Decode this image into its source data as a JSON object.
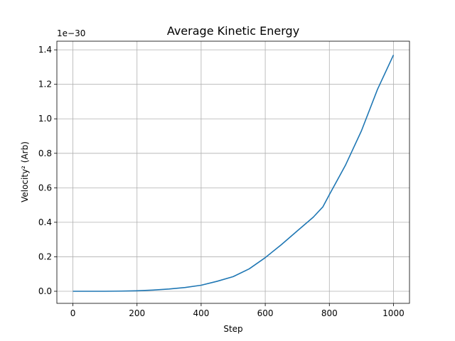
{
  "chart_data": {
    "type": "line",
    "title": "Average Kinetic Energy",
    "xlabel": "Step",
    "ylabel": "Velocity² (Arb)",
    "y_multiplier_label": "1e−30",
    "xlim": [
      -50,
      1050
    ],
    "ylim": [
      -0.07,
      1.45
    ],
    "xticks": [
      0,
      200,
      400,
      600,
      800,
      1000
    ],
    "xtick_labels": [
      "0",
      "200",
      "400",
      "600",
      "800",
      "1000"
    ],
    "yticks": [
      0.0,
      0.2,
      0.4,
      0.6,
      0.8,
      1.0,
      1.2,
      1.4
    ],
    "ytick_labels": [
      "0.0",
      "0.2",
      "0.4",
      "0.6",
      "0.8",
      "1.0",
      "1.2",
      "1.4"
    ],
    "grid": true,
    "series": [
      {
        "color": "#1f77b4",
        "x": [
          0,
          50,
          100,
          150,
          200,
          250,
          300,
          350,
          400,
          450,
          500,
          550,
          600,
          650,
          700,
          750,
          780,
          800,
          850,
          900,
          950,
          1000
        ],
        "y": [
          0.0,
          0.0,
          0.0,
          0.001,
          0.003,
          0.007,
          0.013,
          0.022,
          0.035,
          0.058,
          0.085,
          0.13,
          0.195,
          0.27,
          0.35,
          0.43,
          0.49,
          0.56,
          0.73,
          0.93,
          1.17,
          1.37
        ]
      }
    ]
  }
}
